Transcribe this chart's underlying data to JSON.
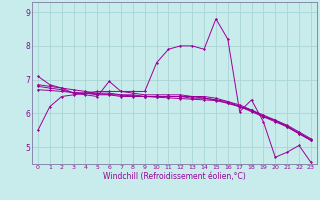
{
  "title": "",
  "xlabel": "Windchill (Refroidissement éolien,°C)",
  "ylabel": "",
  "background_color": "#c8ecec",
  "grid_color": "#aad4d4",
  "line_color": "#990099",
  "spine_color": "#8888aa",
  "xlim": [
    -0.5,
    23.5
  ],
  "ylim": [
    4.5,
    9.3
  ],
  "yticks": [
    5,
    6,
    7,
    8,
    9
  ],
  "xticks": [
    0,
    1,
    2,
    3,
    4,
    5,
    6,
    7,
    8,
    9,
    10,
    11,
    12,
    13,
    14,
    15,
    16,
    17,
    18,
    19,
    20,
    21,
    22,
    23
  ],
  "series": [
    [
      5.5,
      6.2,
      6.5,
      6.55,
      6.6,
      6.65,
      6.65,
      6.65,
      6.65,
      6.65,
      7.5,
      7.9,
      8.0,
      8.0,
      7.9,
      8.8,
      8.2,
      6.05,
      6.4,
      5.75,
      4.7,
      4.85,
      5.05,
      4.55
    ],
    [
      7.1,
      6.85,
      6.75,
      6.6,
      6.55,
      6.5,
      6.95,
      6.65,
      6.6,
      6.55,
      6.55,
      6.55,
      6.55,
      6.5,
      6.5,
      6.45,
      6.35,
      6.2,
      6.1,
      5.9,
      5.8,
      5.6,
      5.4,
      5.2
    ],
    [
      6.8,
      6.75,
      6.7,
      6.6,
      6.6,
      6.55,
      6.55,
      6.5,
      6.5,
      6.5,
      6.5,
      6.5,
      6.5,
      6.45,
      6.45,
      6.4,
      6.3,
      6.2,
      6.05,
      5.9,
      5.75,
      5.6,
      5.4,
      5.2
    ],
    [
      6.85,
      6.8,
      6.75,
      6.7,
      6.65,
      6.6,
      6.6,
      6.55,
      6.55,
      6.5,
      6.5,
      6.5,
      6.5,
      6.5,
      6.45,
      6.4,
      6.35,
      6.25,
      6.1,
      5.95,
      5.8,
      5.65,
      5.45,
      5.25
    ],
    [
      6.7,
      6.68,
      6.65,
      6.62,
      6.6,
      6.58,
      6.56,
      6.54,
      6.52,
      6.5,
      6.48,
      6.46,
      6.44,
      6.42,
      6.4,
      6.38,
      6.3,
      6.2,
      6.08,
      5.92,
      5.78,
      5.62,
      5.42,
      5.22
    ]
  ],
  "xlabel_fontsize": 5.5,
  "tick_fontsize": 5.5
}
